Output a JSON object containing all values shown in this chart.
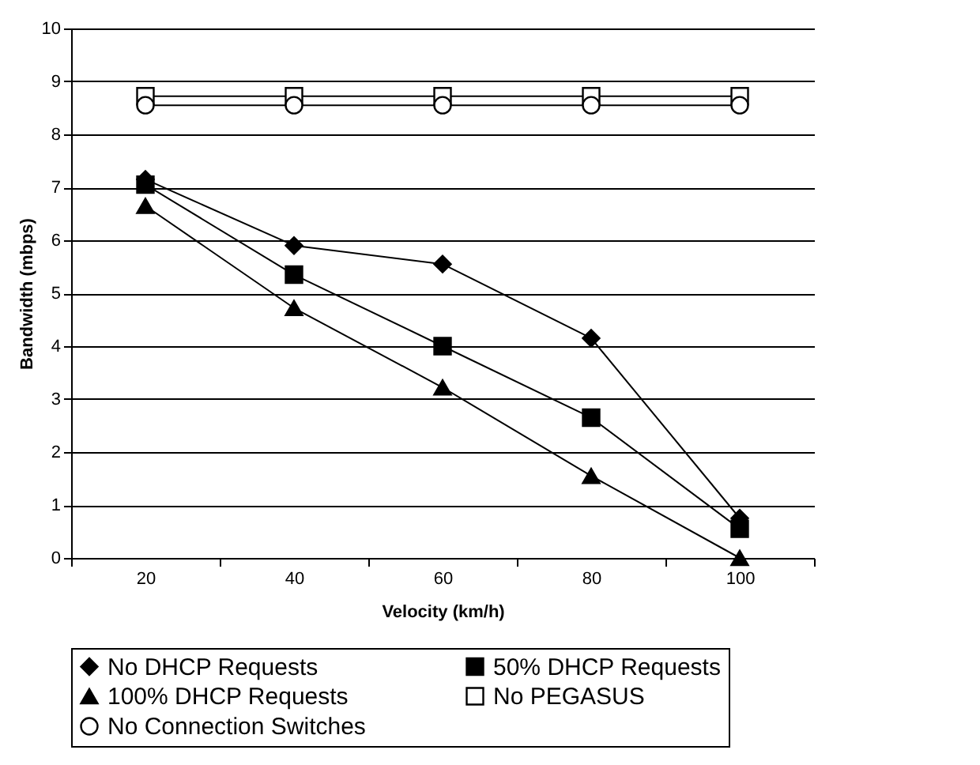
{
  "chart_data": {
    "type": "line",
    "xlabel": "Velocity (km/h)",
    "ylabel": "Bandwidth (mbps)",
    "categories": [
      "20",
      "40",
      "60",
      "80",
      "100"
    ],
    "ylim": [
      0,
      10
    ],
    "yticks": [
      0,
      1,
      2,
      3,
      4,
      5,
      6,
      7,
      8,
      9,
      10
    ],
    "grid": "y",
    "legend": "bottom",
    "line_style": "solid",
    "series": [
      {
        "name": "No DHCP Requests",
        "color": "#000000",
        "marker": "diamond",
        "values": [
          7.15,
          5.9,
          5.55,
          4.15,
          0.75
        ]
      },
      {
        "name": "50% DHCP Requests",
        "color": "#000000",
        "marker": "square",
        "values": [
          7.05,
          5.35,
          4.0,
          2.65,
          0.55
        ]
      },
      {
        "name": "100% DHCP Requests",
        "color": "#000000",
        "marker": "triangle",
        "values": [
          6.65,
          4.72,
          3.22,
          1.55,
          0.0
        ]
      },
      {
        "name": "No PEGASUS",
        "color": "#ffffff",
        "marker": "square",
        "values": [
          8.72,
          8.72,
          8.72,
          8.72,
          8.72
        ]
      },
      {
        "name": "No Connection Switches",
        "color": "#ffffff",
        "marker": "circle",
        "values": [
          8.55,
          8.55,
          8.55,
          8.55,
          8.55
        ]
      }
    ]
  }
}
